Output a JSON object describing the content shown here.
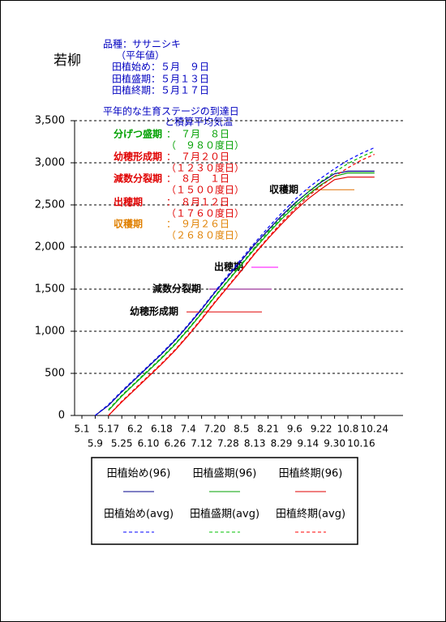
{
  "header": {
    "location": "若柳",
    "variety": "品種：ササニシキ",
    "note": "（平年値）",
    "planting": [
      "田植始め：５月　９日",
      "田植盛期：５月１３日",
      "田植終期：５月１７日"
    ]
  },
  "chart_data": {
    "type": "line",
    "title": [
      "平年的な生育ステージの到達日",
      "と積算平均気温"
    ],
    "categories": [
      "5.1",
      "5.9",
      "5.17",
      "5.25",
      "6.2",
      "6.10",
      "6.18",
      "6.26",
      "7.4",
      "7.12",
      "7.20",
      "7.28",
      "8.5",
      "8.13",
      "8.21",
      "8.29",
      "9.6",
      "9.14",
      "9.22",
      "9.30",
      "10.8",
      "10.16",
      "10.24"
    ],
    "series": [
      {
        "name": "田植始め(96)",
        "color": "#00008b",
        "dashed": false,
        "values": [
          null,
          0,
          120,
          280,
          430,
          580,
          730,
          890,
          1070,
          1260,
          1460,
          1650,
          1840,
          2030,
          2200,
          2370,
          2520,
          2650,
          2770,
          2870,
          2900,
          2900,
          2900
        ]
      },
      {
        "name": "田植盛期(96)",
        "color": "#00a000",
        "dashed": false,
        "values": [
          null,
          null,
          60,
          230,
          380,
          530,
          680,
          840,
          1020,
          1210,
          1410,
          1600,
          1790,
          1980,
          2160,
          2330,
          2480,
          2620,
          2740,
          2840,
          2880,
          2880,
          2880
        ]
      },
      {
        "name": "田植終期(96)",
        "color": "#e00000",
        "dashed": false,
        "values": [
          null,
          null,
          0,
          160,
          310,
          460,
          610,
          770,
          950,
          1140,
          1340,
          1530,
          1720,
          1920,
          2100,
          2270,
          2430,
          2570,
          2690,
          2800,
          2830,
          2830,
          2830
        ]
      },
      {
        "name": "田植始め(avg)",
        "color": "#0000ff",
        "dashed": true,
        "values": [
          null,
          0,
          130,
          290,
          440,
          590,
          740,
          900,
          1080,
          1270,
          1470,
          1670,
          1860,
          2050,
          2230,
          2400,
          2560,
          2700,
          2820,
          2930,
          3030,
          3110,
          3180
        ]
      },
      {
        "name": "田植盛期(avg)",
        "color": "#00c000",
        "dashed": true,
        "values": [
          null,
          null,
          70,
          240,
          390,
          540,
          690,
          850,
          1030,
          1220,
          1420,
          1610,
          1800,
          2000,
          2180,
          2350,
          2510,
          2650,
          2780,
          2890,
          2990,
          3070,
          3140
        ]
      },
      {
        "name": "田植終期(avg)",
        "color": "#ff0000",
        "dashed": true,
        "values": [
          null,
          null,
          0,
          170,
          320,
          470,
          620,
          780,
          960,
          1150,
          1350,
          1540,
          1730,
          1930,
          2110,
          2290,
          2450,
          2600,
          2730,
          2840,
          2940,
          3030,
          3100
        ]
      }
    ],
    "ylim": [
      0,
      3500
    ],
    "yticks": [
      0,
      500,
      {
        "value": 1000,
        "label": "1,000"
      },
      {
        "value": 1500,
        "label": "1,500"
      },
      {
        "value": 2000,
        "label": "2,000"
      },
      {
        "value": 2500,
        "label": "2,500"
      },
      {
        "value": 3000,
        "label": "3,000"
      },
      {
        "value": 3500,
        "label": "3,500"
      }
    ],
    "grid": true,
    "stages": [
      {
        "name": "分げつ盛期",
        "date": "：　７月　８日",
        "gdd": "（　９８０度日）",
        "color": "#00a000"
      },
      {
        "name": "幼穂形成期",
        "date": "：　７月２０日",
        "gdd": "（１２３０度日）",
        "color": "#e00000"
      },
      {
        "name": "減数分裂期",
        "date": "：　８月　１日",
        "gdd": "（１５００度日）",
        "color": "#e00000"
      },
      {
        "name": "出穂期",
        "date": "：　８月１２日",
        "gdd": "（１７６０度日）",
        "color": "#e00000"
      },
      {
        "name": "収穫期",
        "date": "：　９月２６日",
        "gdd": "（２６８０度日）",
        "color": "#e08000"
      }
    ],
    "markers": [
      {
        "label": "幼穂形成期",
        "value": 1230,
        "color": "#e00000"
      },
      {
        "label": "減数分裂期",
        "value": 1500,
        "color": "#800080"
      },
      {
        "label": "出穂期",
        "value": 1760,
        "color": "#ff00ff"
      },
      {
        "label": "収穫期",
        "value": 2680,
        "color": "#e07000"
      }
    ]
  }
}
